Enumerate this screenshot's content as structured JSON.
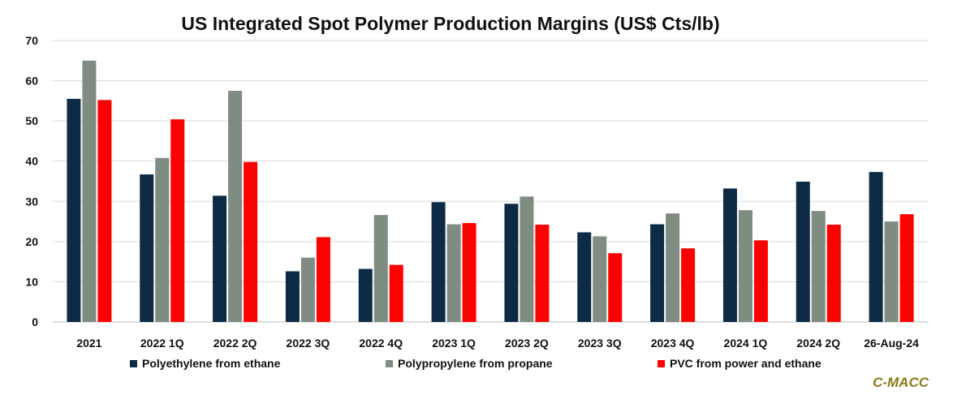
{
  "chart_data": {
    "type": "bar",
    "title": "US Integrated Spot Polymer Production Margins (US$ Cts/lb)",
    "categories": [
      "2021",
      "2022 1Q",
      "2022 2Q",
      "2022 3Q",
      "2022 4Q",
      "2023 1Q",
      "2023 2Q",
      "2023 3Q",
      "2023 4Q",
      "2024 1Q",
      "2024 2Q",
      "26-Aug-24"
    ],
    "series": [
      {
        "name": "Polyethylene from ethane",
        "color": "#0d2b45",
        "values": [
          55.5,
          36.7,
          31.4,
          12.6,
          13.2,
          29.8,
          29.4,
          22.3,
          24.3,
          33.2,
          34.9,
          37.3
        ]
      },
      {
        "name": "Polypropylene from propane",
        "color": "#7f8c82",
        "values": [
          65.0,
          40.8,
          57.5,
          16.0,
          26.6,
          24.3,
          31.2,
          21.3,
          27.0,
          27.8,
          27.6,
          25.0
        ]
      },
      {
        "name": "PVC from power and ethane",
        "color": "#ff0000",
        "values": [
          55.2,
          50.4,
          39.8,
          21.1,
          14.2,
          24.6,
          24.2,
          17.1,
          18.3,
          20.3,
          24.2,
          26.8
        ]
      }
    ],
    "yticks": [
      0,
      10,
      20,
      30,
      40,
      50,
      60,
      70
    ],
    "ylim": [
      0,
      70
    ],
    "grid": true,
    "legend_position": "bottom"
  },
  "watermark": "C-MACC"
}
